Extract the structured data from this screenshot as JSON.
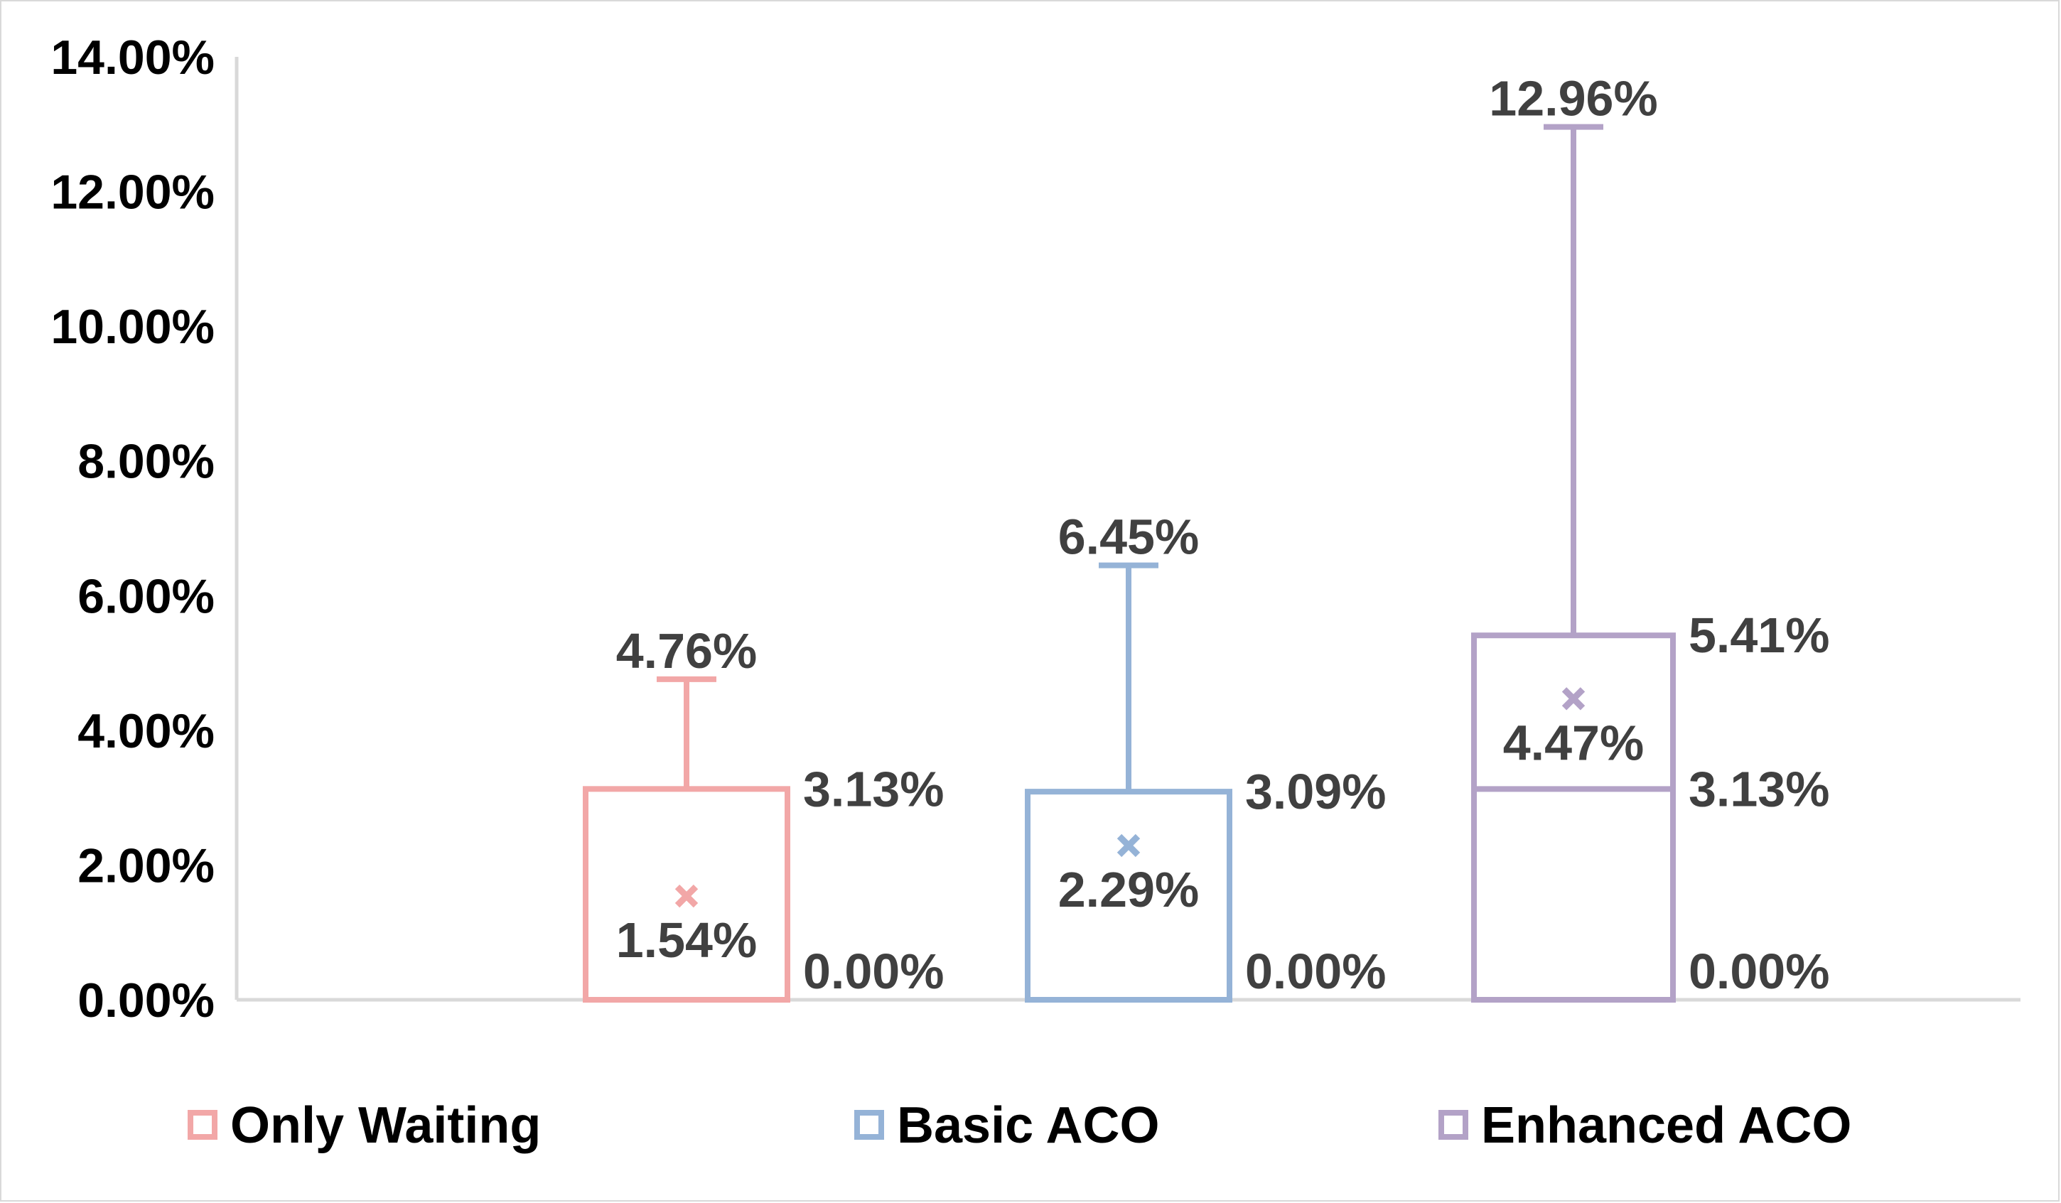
{
  "chart_data": {
    "type": "box",
    "y_axis": {
      "min": 0,
      "max": 14,
      "step": 2,
      "tick_labels": [
        "0.00%",
        "2.00%",
        "4.00%",
        "6.00%",
        "8.00%",
        "10.00%",
        "12.00%",
        "14.00%"
      ]
    },
    "grid": false,
    "legend_position": "bottom",
    "series": [
      {
        "name": "Only Waiting",
        "color": "#f2a7a7",
        "min": 0.0,
        "q1": 0.0,
        "median": 3.13,
        "q3": 3.13,
        "max": 4.76,
        "mean": 1.54,
        "labels": {
          "max": "4.76%",
          "q3": "3.13%",
          "min": "0.00%",
          "mean": "1.54%"
        }
      },
      {
        "name": "Basic ACO",
        "color": "#95b3d7",
        "min": 0.0,
        "q1": 0.0,
        "median": 3.09,
        "q3": 3.09,
        "max": 6.45,
        "mean": 2.29,
        "labels": {
          "max": "6.45%",
          "q3": "3.09%",
          "min": "0.00%",
          "mean": "2.29%"
        }
      },
      {
        "name": "Enhanced ACO",
        "color": "#b3a2c7",
        "min": 0.0,
        "q1": 0.0,
        "median": 3.13,
        "q3": 5.41,
        "max": 12.96,
        "mean": 4.47,
        "labels": {
          "max": "12.96%",
          "q3": "5.41%",
          "median": "3.13%",
          "min": "0.00%",
          "mean": "4.47%"
        }
      }
    ]
  }
}
